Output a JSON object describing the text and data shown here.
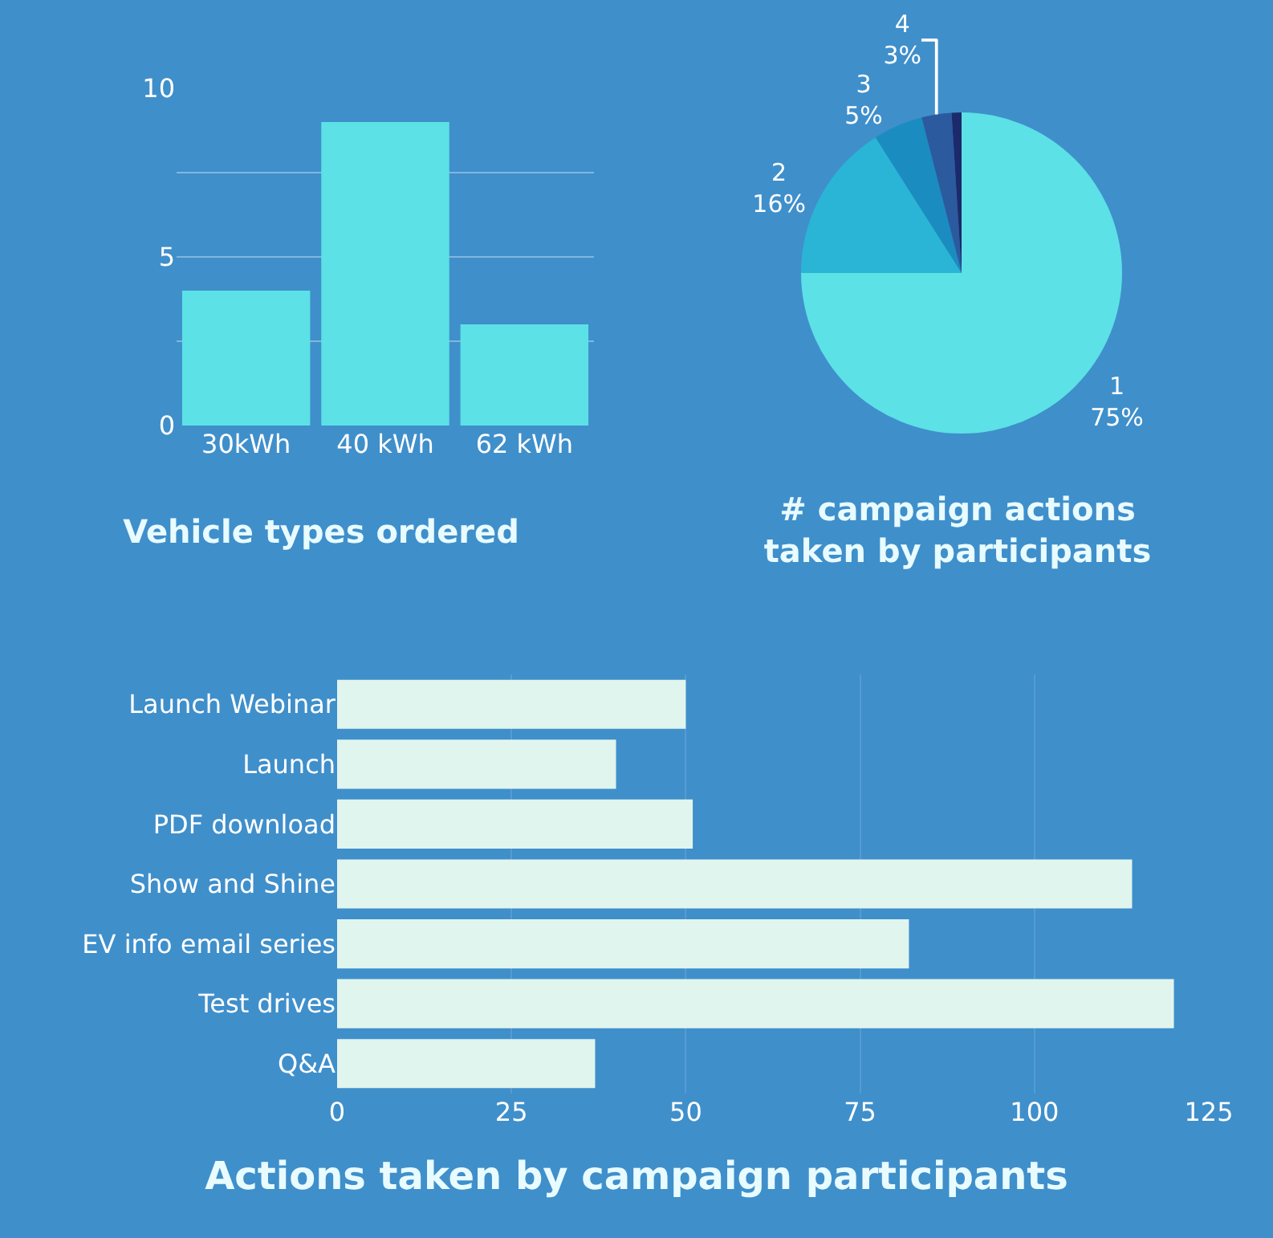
{
  "chart_data": [
    {
      "type": "bar",
      "title": "Vehicle types ordered",
      "categories": [
        "30kWh",
        "40 kWh",
        "62 kWh"
      ],
      "values": [
        4,
        9,
        3
      ],
      "color": "#5ce1e6",
      "ylim": [
        0,
        10
      ],
      "yticks": [
        0,
        {
          "value": 2.5,
          "label": null
        },
        5,
        {
          "value": 7.5,
          "label": null
        },
        10
      ],
      "grid": "y",
      "legend": false
    },
    {
      "type": "pie",
      "title": "# campaign actions taken by participants",
      "categories": [
        "1",
        "2",
        "3",
        "4",
        null
      ],
      "values": [
        75,
        16,
        5,
        3,
        1
      ],
      "value_labels": [
        "75%",
        "16%",
        "5%",
        "3%",
        null
      ],
      "colors": [
        "#5ce1e6",
        "#2ab5d6",
        "#1a8cc0",
        "#2c5a9e",
        "#1c2a6b"
      ],
      "legend": false
    },
    {
      "type": "bar",
      "orientation": "horizontal",
      "title": "Actions taken by campaign participants",
      "categories": [
        "Launch Webinar",
        "Launch",
        "PDF download",
        "Show and Shine",
        "EV info email series",
        "Test drives",
        "Q&A"
      ],
      "values": [
        50,
        40,
        51,
        114,
        82,
        120,
        37
      ],
      "color": "#e0f5ee",
      "xlim": [
        0,
        125
      ],
      "xticks": [
        0,
        25,
        50,
        75,
        100,
        125
      ],
      "grid": "x",
      "legend": false
    }
  ]
}
